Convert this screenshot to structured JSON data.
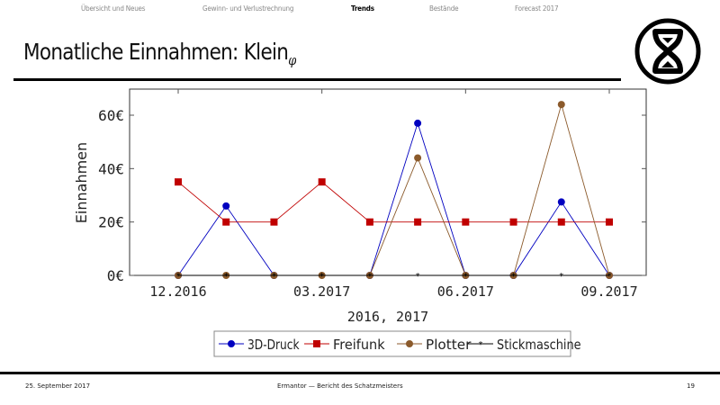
{
  "nav": {
    "items": [
      {
        "label": "Übersicht und Neues",
        "active": false
      },
      {
        "label": "Gewinn- und Verlustrechnung",
        "active": false
      },
      {
        "label": "Trends",
        "active": true
      },
      {
        "label": "Bestände",
        "active": false
      },
      {
        "label": "Forecast 2017",
        "active": false
      }
    ]
  },
  "slide": {
    "title": "Monatliche Einnahmen: Klein",
    "title_subscript": "φ",
    "logo_icon": "hourglass-circle-icon"
  },
  "footer": {
    "date": "25. September 2017",
    "center": "Ermantor — Bericht des Schatzmeisters",
    "page": "19"
  },
  "chart_data": {
    "type": "line",
    "title": "",
    "xlabel": "2016, 2017",
    "ylabel": "Einnahmen",
    "ylim": [
      0,
      70
    ],
    "yticks": [
      "0€",
      "20€",
      "40€",
      "60€"
    ],
    "ytick_values": [
      0,
      20,
      40,
      60
    ],
    "x": [
      "12.2016",
      "01.2017",
      "02.2017",
      "03.2017",
      "04.2017",
      "05.2017",
      "06.2017",
      "07.2017",
      "08.2017",
      "09.2017"
    ],
    "xtick_labels": [
      "12.2016",
      "03.2017",
      "06.2017",
      "09.2017"
    ],
    "grid": false,
    "legend_position": "bottom-center",
    "series": [
      {
        "name": "3D-Druck",
        "color": "#0000c0",
        "marker": "circle",
        "values": [
          0,
          26,
          0,
          null,
          0,
          57,
          0,
          0,
          27.5,
          0
        ]
      },
      {
        "name": "Freifunk",
        "color": "#c00000",
        "marker": "square",
        "values": [
          35,
          20,
          20,
          35,
          20,
          20,
          20,
          20,
          20,
          20
        ]
      },
      {
        "name": "Plotter",
        "color": "#8b5a2b",
        "marker": "circle",
        "values": [
          0,
          0,
          0,
          0,
          0,
          44,
          0,
          0,
          64,
          0
        ]
      },
      {
        "name": "Stickmaschine",
        "color": "#000000",
        "marker": "star",
        "values": [
          0,
          0,
          0,
          0,
          0,
          0,
          0,
          0,
          0,
          0
        ]
      }
    ]
  }
}
